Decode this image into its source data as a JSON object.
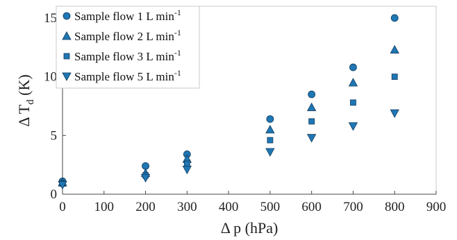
{
  "chart_data": {
    "type": "scatter",
    "title": "",
    "xlabel_symbol": "Δ",
    "xlabel_text": "p (hPa)",
    "ylabel_symbol": "Δ",
    "ylabel_main": "T",
    "ylabel_sub": "d",
    "ylabel_unit": "(K)",
    "xlim": [
      0,
      900
    ],
    "ylim": [
      0,
      16
    ],
    "xticks": [
      "0",
      "100",
      "200",
      "300",
      "400",
      "500",
      "600",
      "700",
      "800",
      "900"
    ],
    "yticks": [
      "0",
      "5",
      "10",
      "15"
    ],
    "xtick_values": [
      0,
      100,
      200,
      300,
      400,
      500,
      600,
      700,
      800,
      900
    ],
    "ytick_values": [
      0,
      5,
      10,
      15
    ],
    "grid": false,
    "legend_position": "top-left",
    "marker_color": "#1f77b4",
    "series": [
      {
        "name": "Sample flow 1 L min",
        "name_sup": "-1",
        "marker": "circle",
        "x": [
          0,
          200,
          300,
          500,
          600,
          700,
          800
        ],
        "y": [
          1.1,
          2.4,
          3.4,
          6.4,
          8.5,
          10.8,
          15.0
        ]
      },
      {
        "name": "Sample flow 2 L min",
        "name_sup": "-1",
        "marker": "triangle-up",
        "x": [
          0,
          200,
          300,
          500,
          600,
          700,
          800
        ],
        "y": [
          1.0,
          1.8,
          3.0,
          5.5,
          7.4,
          9.5,
          12.3
        ]
      },
      {
        "name": "Sample flow 3 L min",
        "name_sup": "-1",
        "marker": "square",
        "x": [
          0,
          200,
          300,
          500,
          600,
          700,
          800
        ],
        "y": [
          0.9,
          1.6,
          2.6,
          4.6,
          6.2,
          7.8,
          10.0
        ]
      },
      {
        "name": "Sample flow 5 L min",
        "name_sup": "-1",
        "marker": "triangle-down",
        "x": [
          0,
          200,
          300,
          500,
          600,
          700,
          800
        ],
        "y": [
          0.8,
          1.4,
          2.1,
          3.6,
          4.8,
          5.8,
          6.9
        ]
      }
    ]
  }
}
